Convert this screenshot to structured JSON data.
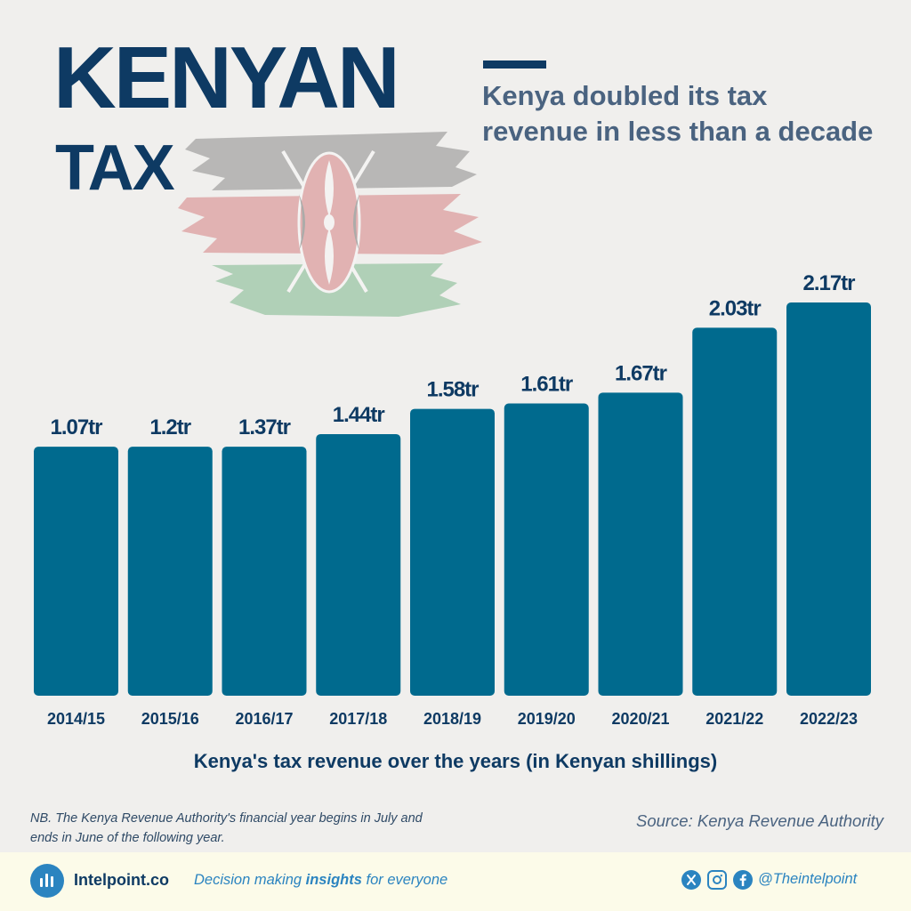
{
  "header": {
    "title": "KENYAN",
    "subtitle": "TAX",
    "headline": "Kenya doubled its tax revenue in less than a decade"
  },
  "chart_data": {
    "type": "bar",
    "title": "Kenya's tax revenue over the years (in Kenyan shillings)",
    "categories": [
      "2014/15",
      "2015/16",
      "2016/17",
      "2017/18",
      "2018/19",
      "2019/20",
      "2020/21",
      "2021/22",
      "2022/23"
    ],
    "values": [
      1.07,
      1.2,
      1.37,
      1.44,
      1.58,
      1.61,
      1.67,
      2.03,
      2.17
    ],
    "labels": [
      "1.07tr",
      "1.2tr",
      "1.37tr",
      "1.44tr",
      "1.58tr",
      "1.61tr",
      "1.67tr",
      "2.03tr",
      "2.17tr"
    ],
    "unit": "trillion KES",
    "xlabel": "",
    "ylabel": "",
    "grid": false,
    "bar_color": "#006a8e"
  },
  "footnote": "NB. The Kenya Revenue Authority's financial year begins in July and ends in June of the following year.",
  "source": "Source: Kenya Revenue Authority",
  "footer": {
    "brand": "Intelpoint.co",
    "tagline_before": "Decision making ",
    "tagline_bold": "insights",
    "tagline_after": " for everyone",
    "handle": "@Theintelpoint",
    "icons": [
      "x-icon",
      "instagram-icon",
      "facebook-icon"
    ]
  },
  "colors": {
    "primary": "#0e3a63",
    "bar": "#006a8e",
    "accent": "#2b84c0",
    "background": "#f0efed",
    "footer_bg": "#fcfbe9"
  }
}
